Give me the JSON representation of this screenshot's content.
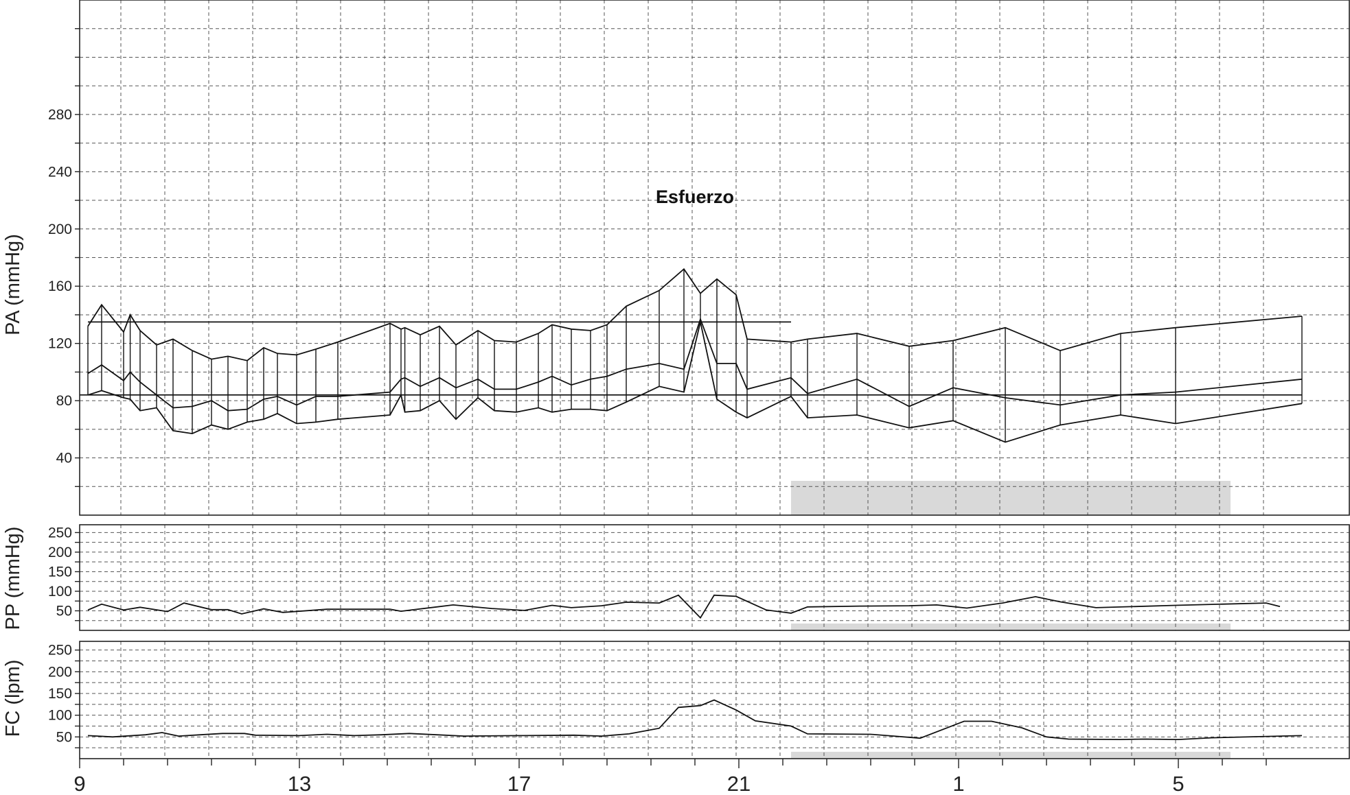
{
  "chart_data": [
    {
      "type": "line",
      "ylabel": "PA (mmHg)",
      "x_tick_labels": [
        "9",
        "13",
        "17",
        "21",
        "1",
        "5"
      ],
      "x_range": [
        9,
        31.3
      ],
      "y_ticks": [
        40,
        80,
        120,
        160,
        200,
        240,
        280
      ],
      "ylim": [
        0,
        360
      ],
      "grid": true,
      "annotation": "Esfuerzo",
      "reference_lines": [
        {
          "value": 135,
          "x_from": 9.15,
          "x_to": 21.95
        },
        {
          "value": 84,
          "x_from": 9.0,
          "x_to": 31.25
        }
      ],
      "night_period": {
        "x_from": 21.95,
        "x_to": 29.95
      },
      "x": [
        9.15,
        9.4,
        9.8,
        9.92,
        10.1,
        10.4,
        10.7,
        11.05,
        11.4,
        11.7,
        12.05,
        12.35,
        12.6,
        12.95,
        13.3,
        13.7,
        14.65,
        14.85,
        14.92,
        15.2,
        15.55,
        15.85,
        16.25,
        16.55,
        16.95,
        17.35,
        17.6,
        17.95,
        18.3,
        18.6,
        18.95,
        19.55,
        20.0,
        20.3,
        20.6,
        20.95,
        21.15,
        21.95,
        22.25,
        23.15,
        24.1,
        24.9,
        25.85,
        26.85,
        27.95,
        28.95,
        31.25
      ],
      "series": [
        {
          "name": "",
          "values": [
            132,
            147,
            128,
            140,
            129,
            119,
            123,
            115,
            109,
            111,
            108,
            117,
            113,
            112,
            116,
            121,
            134,
            130,
            131,
            126,
            132,
            119,
            129,
            122,
            121,
            127,
            133,
            130,
            129,
            133,
            146,
            157,
            172,
            155,
            165,
            154,
            123,
            121,
            123,
            127,
            118,
            122,
            131,
            115,
            127,
            131,
            139
          ]
        },
        {
          "name": "",
          "values": [
            99,
            105,
            94,
            100,
            93,
            84,
            75,
            76,
            80,
            73,
            74,
            81,
            83,
            77,
            83,
            83,
            86,
            95,
            96,
            90,
            96,
            89,
            95,
            88,
            88,
            93,
            97,
            91,
            95,
            97,
            102,
            106,
            102,
            137,
            106,
            106,
            88,
            96,
            85,
            95,
            76,
            89,
            82,
            77,
            84,
            86,
            95
          ]
        },
        {
          "name": "",
          "values": [
            84,
            87,
            82,
            81,
            73,
            75,
            59,
            57,
            63,
            60,
            65,
            67,
            71,
            64,
            65,
            67,
            70,
            84,
            72,
            73,
            80,
            67,
            82,
            73,
            72,
            75,
            72,
            74,
            74,
            73,
            79,
            90,
            86,
            135,
            81,
            72,
            68,
            83,
            68,
            70,
            61,
            66,
            51,
            63,
            70,
            64,
            78
          ]
        }
      ]
    },
    {
      "type": "line",
      "ylabel": "PP (mmHg)",
      "y_ticks": [
        50,
        100,
        150,
        200,
        250
      ],
      "ylim": [
        0,
        270
      ],
      "grid": true,
      "night_period": {
        "x_from": 21.95,
        "x_to": 29.95
      },
      "x": [
        9.15,
        9.4,
        9.8,
        10.1,
        10.6,
        10.9,
        11.4,
        11.7,
        11.95,
        12.35,
        12.7,
        13.5,
        14.65,
        14.85,
        15.8,
        16.5,
        17.1,
        17.6,
        17.95,
        18.5,
        18.95,
        19.55,
        19.9,
        20.3,
        20.55,
        20.95,
        21.5,
        21.95,
        22.25,
        23.2,
        24.1,
        24.6,
        25.15,
        25.8,
        26.4,
        26.85,
        27.5,
        28.95,
        30.6,
        30.85
      ],
      "series": [
        {
          "name": "",
          "values": [
            52,
            67,
            52,
            59,
            48,
            70,
            53,
            53,
            42,
            55,
            46,
            54,
            54,
            49,
            65,
            56,
            51,
            64,
            58,
            63,
            72,
            70,
            90,
            32,
            90,
            87,
            52,
            44,
            60,
            62,
            63,
            65,
            57,
            70,
            86,
            73,
            58,
            64,
            70,
            61
          ]
        }
      ]
    },
    {
      "type": "line",
      "ylabel": "FC (lpm)",
      "y_ticks": [
        50,
        100,
        150,
        200,
        250
      ],
      "ylim": [
        0,
        270
      ],
      "grid": true,
      "night_period": {
        "x_from": 21.95,
        "x_to": 29.95
      },
      "x": [
        9.15,
        9.6,
        10.2,
        10.5,
        10.8,
        11.2,
        11.6,
        12.0,
        12.2,
        13.0,
        13.5,
        14.0,
        14.5,
        15.0,
        15.5,
        16.0,
        17.0,
        18.0,
        18.5,
        19.0,
        19.55,
        19.9,
        20.3,
        20.55,
        20.95,
        21.3,
        21.95,
        22.25,
        23.4,
        24.3,
        25.1,
        25.6,
        26.15,
        26.6,
        27.0,
        27.95,
        28.4,
        29.0,
        29.6,
        31.25
      ],
      "series": [
        {
          "name": "",
          "values": [
            53,
            50,
            55,
            60,
            52,
            55,
            58,
            58,
            54,
            53,
            56,
            53,
            55,
            58,
            55,
            52,
            53,
            54,
            52,
            57,
            70,
            118,
            122,
            135,
            112,
            87,
            75,
            57,
            56,
            47,
            86,
            86,
            71,
            50,
            45,
            44,
            45,
            44,
            48,
            53
          ]
        }
      ]
    }
  ]
}
